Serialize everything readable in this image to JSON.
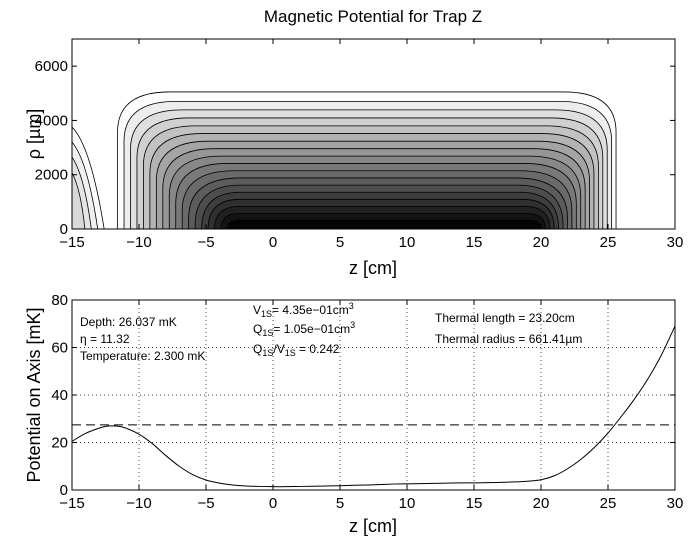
{
  "chart_data": [
    {
      "type": "contour",
      "title": "Magnetic Potential for Trap Z",
      "xlabel": "z [cm]",
      "ylabel": "ρ [µm]",
      "xlim": [
        -15,
        30
      ],
      "ylim": [
        0,
        7000
      ],
      "xticks": [
        "−15",
        "−10",
        "−5",
        "0",
        "5",
        "10",
        "15",
        "20",
        "25",
        "30"
      ],
      "yticks": [
        "0",
        "2000",
        "4000",
        "6000"
      ],
      "colormap": "gray",
      "contour_levels": 18,
      "main_region": {
        "z_start": -11.6,
        "z_end": 25.6,
        "rho_max": 5050,
        "core_z_start": -3.4,
        "core_z_end": 20.0
      },
      "left_region": {
        "z_start": -15,
        "z_end": -12.6,
        "rho_max": 3600
      },
      "grid": false
    },
    {
      "type": "line",
      "xlabel": "z [cm]",
      "ylabel": "Potential on Axis [mK]",
      "xlim": [
        -15,
        30
      ],
      "ylim": [
        0,
        80
      ],
      "xticks": [
        "−15",
        "−10",
        "−5",
        "0",
        "5",
        "10",
        "15",
        "20",
        "25",
        "30"
      ],
      "yticks": [
        "0",
        "20",
        "40",
        "60",
        "80"
      ],
      "grid": true,
      "series": [
        {
          "x": [
            -15,
            -14,
            -13,
            -12.5,
            -12,
            -11.5,
            -11,
            -10,
            -9,
            -8,
            -7,
            -6,
            -5,
            -4,
            -3,
            -2,
            -1,
            0,
            1,
            2,
            3,
            4,
            5,
            6,
            7,
            8,
            9,
            10,
            11,
            12,
            13,
            14,
            15,
            16,
            17,
            18,
            19,
            20,
            21,
            22,
            23,
            24,
            25,
            26,
            27,
            28,
            29,
            30
          ],
          "y": [
            20.5,
            23.8,
            26.0,
            26.8,
            27.0,
            26.8,
            26.1,
            23.5,
            19.5,
            14.5,
            10.0,
            6.5,
            4.2,
            2.9,
            2.1,
            1.7,
            1.5,
            1.4,
            1.4,
            1.5,
            1.6,
            1.7,
            1.8,
            2.0,
            2.1,
            2.3,
            2.5,
            2.6,
            2.7,
            2.8,
            2.9,
            3.0,
            3.0,
            3.1,
            3.2,
            3.4,
            3.7,
            4.3,
            6.0,
            9.0,
            13.0,
            18.0,
            24.0,
            31.0,
            38.5,
            47.0,
            57.0,
            69.0
          ]
        },
        {
          "style": "dashed",
          "x": [
            -15,
            30
          ],
          "y": [
            27.4,
            27.4
          ]
        }
      ],
      "annotations": {
        "depth": "Depth: 26.037 mK",
        "eta": "η = 11.32",
        "temperature": "Temperature: 2.300 mK",
        "v1s": {
          "prefix": "V",
          "sub": "1S",
          "value": "= 4.35e−01cm",
          "sup": "3"
        },
        "q1s": {
          "prefix": "Q",
          "sub": "1S",
          "value": "= 1.05e−01cm",
          "sup": "3"
        },
        "ratio": {
          "q": "Q",
          "q_sub": "1S",
          "slash": "/V",
          "v_sub": "1S",
          "value": " = 0.242"
        },
        "thermal_length": "Thermal length = 23.20cm",
        "thermal_radius": "Thermal radius = 661.41µm"
      }
    }
  ]
}
